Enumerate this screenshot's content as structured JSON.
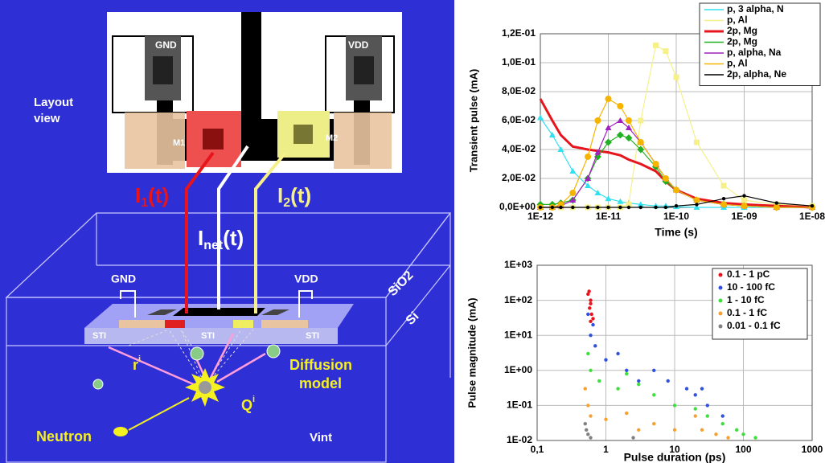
{
  "diagram": {
    "layout_label": [
      "Layout",
      "view"
    ],
    "layout_gnd": "GND",
    "layout_vdd": "VDD",
    "m1": "M1",
    "m2": "M2",
    "i1": {
      "symbol": "I",
      "sub": "1",
      "arg": "(t)"
    },
    "i2": {
      "symbol": "I",
      "sub": "2",
      "arg": "(t)"
    },
    "inet": {
      "symbol": "I",
      "sub": "net",
      "arg": "(t)"
    },
    "cross_section": {
      "gnd": "GND",
      "vdd": "VDD",
      "sio2": "SiO2",
      "si": "Si",
      "sti": [
        "STI",
        "STI",
        "STI"
      ],
      "ri": {
        "symbol": "r",
        "sup": "i"
      },
      "qi": {
        "symbol": "Q",
        "sup": "i"
      },
      "diffusion": [
        "Diffusion",
        "model"
      ],
      "neutron": "Neutron",
      "vint": "Vint"
    }
  },
  "chart_data": [
    {
      "type": "line",
      "ylabel": "Transient pulse (mA)",
      "xlabel": "Time (s)",
      "xscale": "log",
      "xlim": [
        1e-12,
        1e-08
      ],
      "ylim": [
        0,
        0.12
      ],
      "xticks": [
        {
          "value": 1e-12,
          "label": "1E-12"
        },
        {
          "value": 1e-11,
          "label": "1E-11"
        },
        {
          "value": 1e-10,
          "label": "1E-10"
        },
        {
          "value": 1e-09,
          "label": "1E-09"
        },
        {
          "value": 1e-08,
          "label": "1E-08"
        }
      ],
      "yticks": [
        {
          "value": 0,
          "label": "0,0E+00"
        },
        {
          "value": 0.02,
          "label": "2,0E-02"
        },
        {
          "value": 0.04,
          "label": "4,0E-02"
        },
        {
          "value": 0.06,
          "label": "6,0E-02"
        },
        {
          "value": 0.08,
          "label": "8,0E-02"
        },
        {
          "value": 0.1,
          "label": "1,0E-01"
        },
        {
          "value": 0.12,
          "label": "1,2E-01"
        }
      ],
      "grid": true,
      "legend": "upper right",
      "x": [
        1e-12,
        1.5e-12,
        2e-12,
        3e-12,
        5e-12,
        7e-12,
        1e-11,
        1.5e-11,
        2e-11,
        3e-11,
        5e-11,
        7e-11,
        1e-10,
        2e-10,
        5e-10,
        1e-09,
        3e-09,
        1e-08
      ],
      "series": [
        {
          "name": "p, 3 alpha, N",
          "color": "#33e0f0",
          "marker": "triangle",
          "values": [
            0.062,
            0.05,
            0.04,
            0.025,
            0.015,
            0.01,
            0.006,
            0.004,
            0.003,
            0.002,
            0.001,
            0.001,
            0.0005,
            0,
            0,
            0,
            0,
            0
          ]
        },
        {
          "name": "p, Al",
          "color": "#f5f08a",
          "marker": "square",
          "values": [
            0,
            0,
            0,
            0,
            0,
            0,
            0,
            0,
            0.002,
            0.06,
            0.112,
            0.108,
            0.09,
            0.045,
            0.015,
            0.005,
            0.002,
            0.001
          ]
        },
        {
          "name": "2p, Mg",
          "color": "#e8141b",
          "marker": "line",
          "values": [
            0.075,
            0.06,
            0.05,
            0.042,
            0.04,
            0.039,
            0.038,
            0.036,
            0.033,
            0.03,
            0.025,
            0.018,
            0.012,
            0.006,
            0.003,
            0.002,
            0.001,
            0
          ]
        },
        {
          "name": "2p, Mg",
          "color": "#22b022",
          "marker": "diamond",
          "values": [
            0.002,
            0.002,
            0.003,
            0.005,
            0.02,
            0.035,
            0.045,
            0.05,
            0.048,
            0.04,
            0.028,
            0.018,
            0.012,
            0.005,
            0.002,
            0.001,
            0,
            0
          ]
        },
        {
          "name": "p, alpha, Na",
          "color": "#a020c0",
          "marker": "triangle",
          "values": [
            0,
            0,
            0.001,
            0.005,
            0.02,
            0.038,
            0.055,
            0.06,
            0.055,
            0.045,
            0.03,
            0.02,
            0.012,
            0.005,
            0.002,
            0.001,
            0,
            0
          ]
        },
        {
          "name": "p, Al",
          "color": "#f5b400",
          "marker": "circle",
          "values": [
            0,
            0,
            0.002,
            0.01,
            0.035,
            0.06,
            0.075,
            0.07,
            0.06,
            0.045,
            0.03,
            0.02,
            0.012,
            0.005,
            0.002,
            0.001,
            0,
            0
          ]
        },
        {
          "name": "2p, alpha, Ne",
          "color": "#000000",
          "marker": "dot",
          "values": [
            0,
            0,
            0,
            0,
            0,
            0,
            0,
            0,
            0,
            0,
            0,
            0,
            0.001,
            0.002,
            0.006,
            0.008,
            0.003,
            0.001
          ]
        }
      ]
    },
    {
      "type": "scatter",
      "ylabel": "Pulse magnitude (mA)",
      "xlabel": "Pulse duration (ps)",
      "xscale": "log",
      "yscale": "log",
      "xlim": [
        0.1,
        1000
      ],
      "ylim": [
        0.01,
        1000
      ],
      "xticks": [
        {
          "value": 0.1,
          "label": "0,1"
        },
        1,
        10,
        100,
        1000
      ],
      "yticks": [
        {
          "value": 0.01,
          "label": "1E-02"
        },
        {
          "value": 0.1,
          "label": "1E-01"
        },
        {
          "value": 1,
          "label": "1E+00"
        },
        {
          "value": 10,
          "label": "1E+01"
        },
        {
          "value": 100,
          "label": "1E+02"
        },
        {
          "value": 1000,
          "label": "1E+03"
        }
      ],
      "grid": true,
      "legend": "upper right",
      "series": [
        {
          "name": "0.1 - 1 pC",
          "color": "#e8141b",
          "x": [
            0.55,
            0.6,
            0.58,
            0.62,
            0.6,
            0.57,
            0.65,
            0.6
          ],
          "values": [
            150,
            100,
            60,
            40,
            25,
            180,
            30,
            80
          ]
        },
        {
          "name": "10 - 100 fC",
          "color": "#3050e0",
          "x": [
            0.55,
            0.6,
            0.7,
            1,
            2,
            3,
            5,
            8,
            15,
            20,
            30,
            50,
            0.65,
            1.5,
            25
          ],
          "values": [
            40,
            10,
            5,
            2,
            1,
            0.5,
            1,
            0.5,
            0.3,
            0.2,
            0.1,
            0.05,
            20,
            3,
            0.3
          ]
        },
        {
          "name": "1 - 10 fC",
          "color": "#3ce03c",
          "x": [
            0.55,
            0.6,
            0.8,
            1.5,
            3,
            5,
            10,
            20,
            30,
            50,
            80,
            100,
            150,
            2
          ],
          "values": [
            3,
            1,
            0.5,
            0.3,
            0.4,
            0.2,
            0.1,
            0.08,
            0.05,
            0.03,
            0.02,
            0.015,
            0.012,
            0.8
          ]
        },
        {
          "name": "0.1 - 1 fC",
          "color": "#f5a030",
          "x": [
            0.5,
            0.55,
            0.6,
            1,
            2,
            3,
            5,
            10,
            20,
            25,
            40,
            60
          ],
          "values": [
            0.3,
            0.1,
            0.05,
            0.04,
            0.06,
            0.02,
            0.03,
            0.02,
            0.05,
            0.02,
            0.015,
            0.012
          ]
        },
        {
          "name": "0.01 - 0.1 fC",
          "color": "#808080",
          "x": [
            0.5,
            0.55,
            0.6,
            2.5,
            0.52
          ],
          "values": [
            0.03,
            0.015,
            0.012,
            0.012,
            0.02
          ]
        }
      ]
    }
  ]
}
